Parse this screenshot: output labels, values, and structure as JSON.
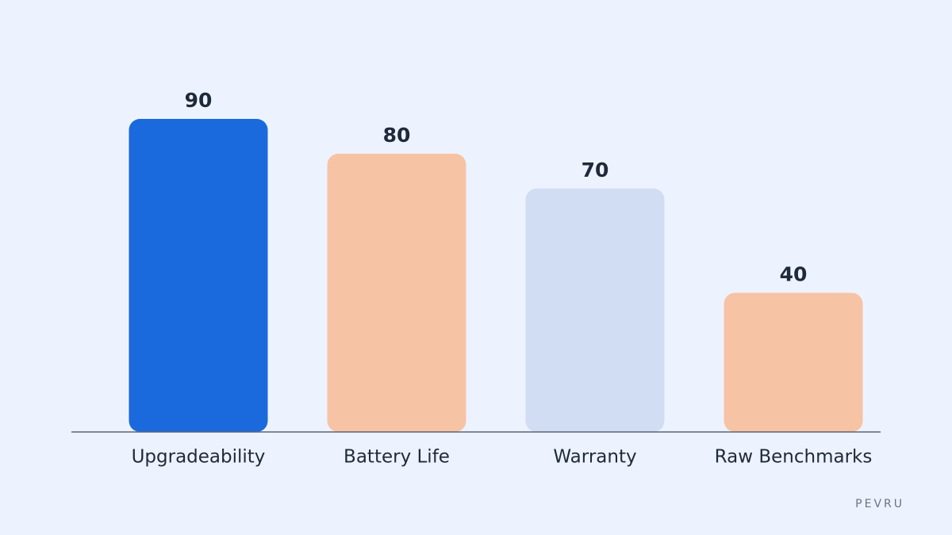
{
  "chart_data": {
    "type": "bar",
    "categories": [
      "Upgradeability",
      "Battery Life",
      "Warranty",
      "Raw Benchmarks"
    ],
    "values": [
      90,
      80,
      70,
      40
    ],
    "colors": [
      "#1a6ade",
      "#f7c3a5",
      "#d0ddf2",
      "#f7c3a5"
    ]
  },
  "watermark": "PEVRU"
}
